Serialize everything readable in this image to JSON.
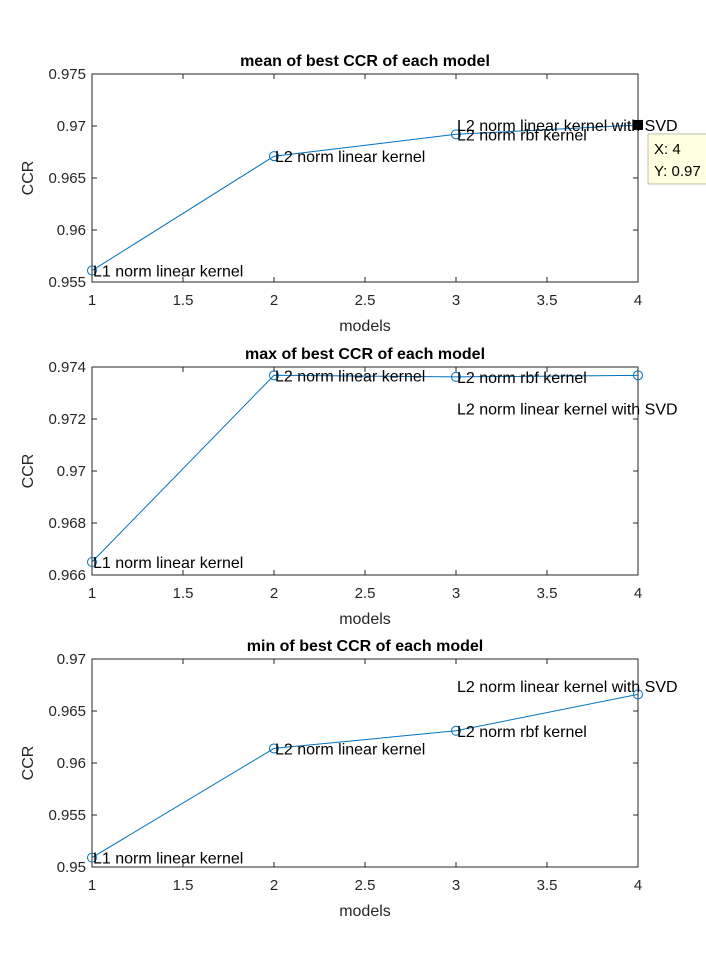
{
  "figure": {
    "background": "#ffffff"
  },
  "chart_data": [
    {
      "type": "line",
      "title": "mean of best CCR of each model",
      "xlabel": "models",
      "ylabel": "CCR",
      "xlim": [
        1,
        4
      ],
      "ylim": [
        0.955,
        0.975
      ],
      "xticks": [
        "1",
        "1.5",
        "2",
        "2.5",
        "3",
        "3.5",
        "4"
      ],
      "yticks": [
        "0.955",
        "0.96",
        "0.965",
        "0.97",
        "0.975"
      ],
      "grid": false,
      "series": [
        {
          "x": [
            1,
            2,
            3,
            4
          ],
          "values": [
            0.9561,
            0.9671,
            0.9692,
            0.9701
          ],
          "color": "#0072BD",
          "marker": "circle"
        }
      ],
      "annotations": [
        {
          "text": "L1 norm linear kernel",
          "x": 1,
          "y": 0.9561
        },
        {
          "text": "L2 norm linear kernel",
          "x": 2,
          "y": 0.9671
        },
        {
          "text": "L2 norm rbf kernel",
          "x": 3,
          "y": 0.9692
        },
        {
          "text": "L2 norm linear kernel with SVD",
          "x": 3,
          "y": 0.9701
        }
      ],
      "datatip": {
        "x": 4,
        "y": 0.9701,
        "lines": [
          "X: 4",
          "Y: 0.97"
        ]
      }
    },
    {
      "type": "line",
      "title": "max of best CCR of each model",
      "xlabel": "models",
      "ylabel": "CCR",
      "xlim": [
        1,
        4
      ],
      "ylim": [
        0.966,
        0.974
      ],
      "xticks": [
        "1",
        "1.5",
        "2",
        "2.5",
        "3",
        "3.5",
        "4"
      ],
      "yticks": [
        "0.966",
        "0.968",
        "0.97",
        "0.972",
        "0.974"
      ],
      "grid": false,
      "series": [
        {
          "x": [
            1,
            2,
            3,
            4
          ],
          "values": [
            0.9665,
            0.97368,
            0.97362,
            0.97368
          ],
          "color": "#0072BD",
          "marker": "circle"
        }
      ],
      "annotations": [
        {
          "text": "L1 norm linear kernel",
          "x": 1,
          "y": 0.9665
        },
        {
          "text": "L2 norm linear kernel",
          "x": 2,
          "y": 0.97368
        },
        {
          "text": "L2 norm rbf kernel",
          "x": 3,
          "y": 0.97362
        },
        {
          "text": "L2 norm linear kernel with SVD",
          "x": 3,
          "y": 0.9724
        }
      ]
    },
    {
      "type": "line",
      "title": "min of best CCR of each model",
      "xlabel": "models",
      "ylabel": "CCR",
      "xlim": [
        1,
        4
      ],
      "ylim": [
        0.95,
        0.97
      ],
      "xticks": [
        "1",
        "1.5",
        "2",
        "2.5",
        "3",
        "3.5",
        "4"
      ],
      "yticks": [
        "0.95",
        "0.955",
        "0.96",
        "0.965",
        "0.97"
      ],
      "grid": false,
      "series": [
        {
          "x": [
            1,
            2,
            3,
            4
          ],
          "values": [
            0.9509,
            0.9614,
            0.9631,
            0.9666
          ],
          "color": "#0072BD",
          "marker": "circle"
        }
      ],
      "annotations": [
        {
          "text": "L1 norm linear kernel",
          "x": 1,
          "y": 0.9509
        },
        {
          "text": "L2 norm linear kernel",
          "x": 2,
          "y": 0.9614
        },
        {
          "text": "L2 norm rbf kernel",
          "x": 3,
          "y": 0.9631
        },
        {
          "text": "L2 norm linear kernel with SVD",
          "x": 3,
          "y": 0.9674
        }
      ]
    }
  ]
}
